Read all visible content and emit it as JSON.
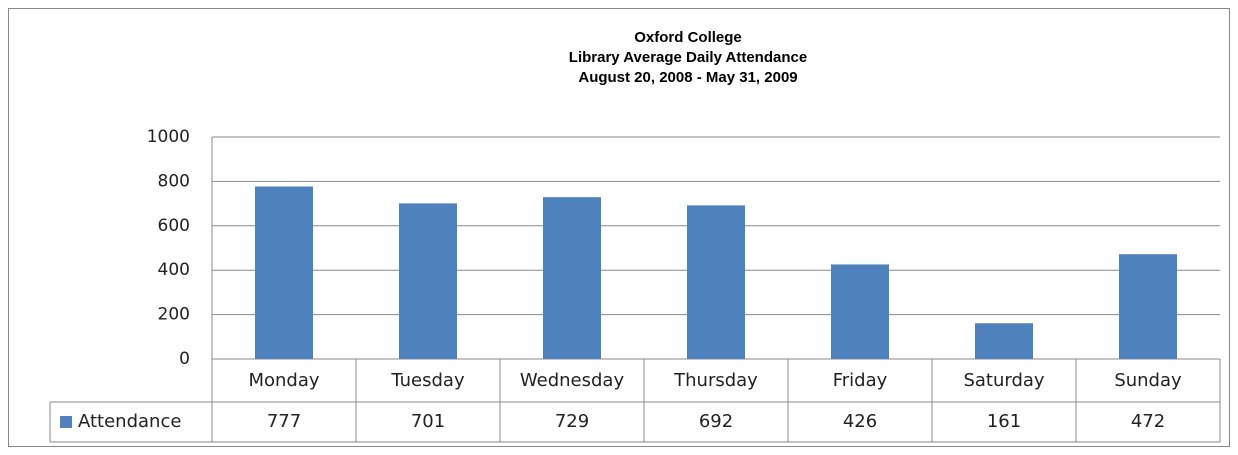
{
  "chart_data": {
    "type": "bar",
    "title": [
      "Oxford College",
      "Library Average Daily Attendance",
      "August 20, 2008  - May 31, 2009"
    ],
    "categories": [
      "Monday",
      "Tuesday",
      "Wednesday",
      "Thursday",
      "Friday",
      "Saturday",
      "Sunday"
    ],
    "series": [
      {
        "name": "Attendance",
        "color": "#4f81bd",
        "values": [
          777,
          701,
          729,
          692,
          426,
          161,
          472
        ]
      }
    ],
    "ylim": [
      0,
      1000
    ],
    "yticks": [
      0,
      200,
      400,
      600,
      800,
      1000
    ],
    "grid": true
  }
}
